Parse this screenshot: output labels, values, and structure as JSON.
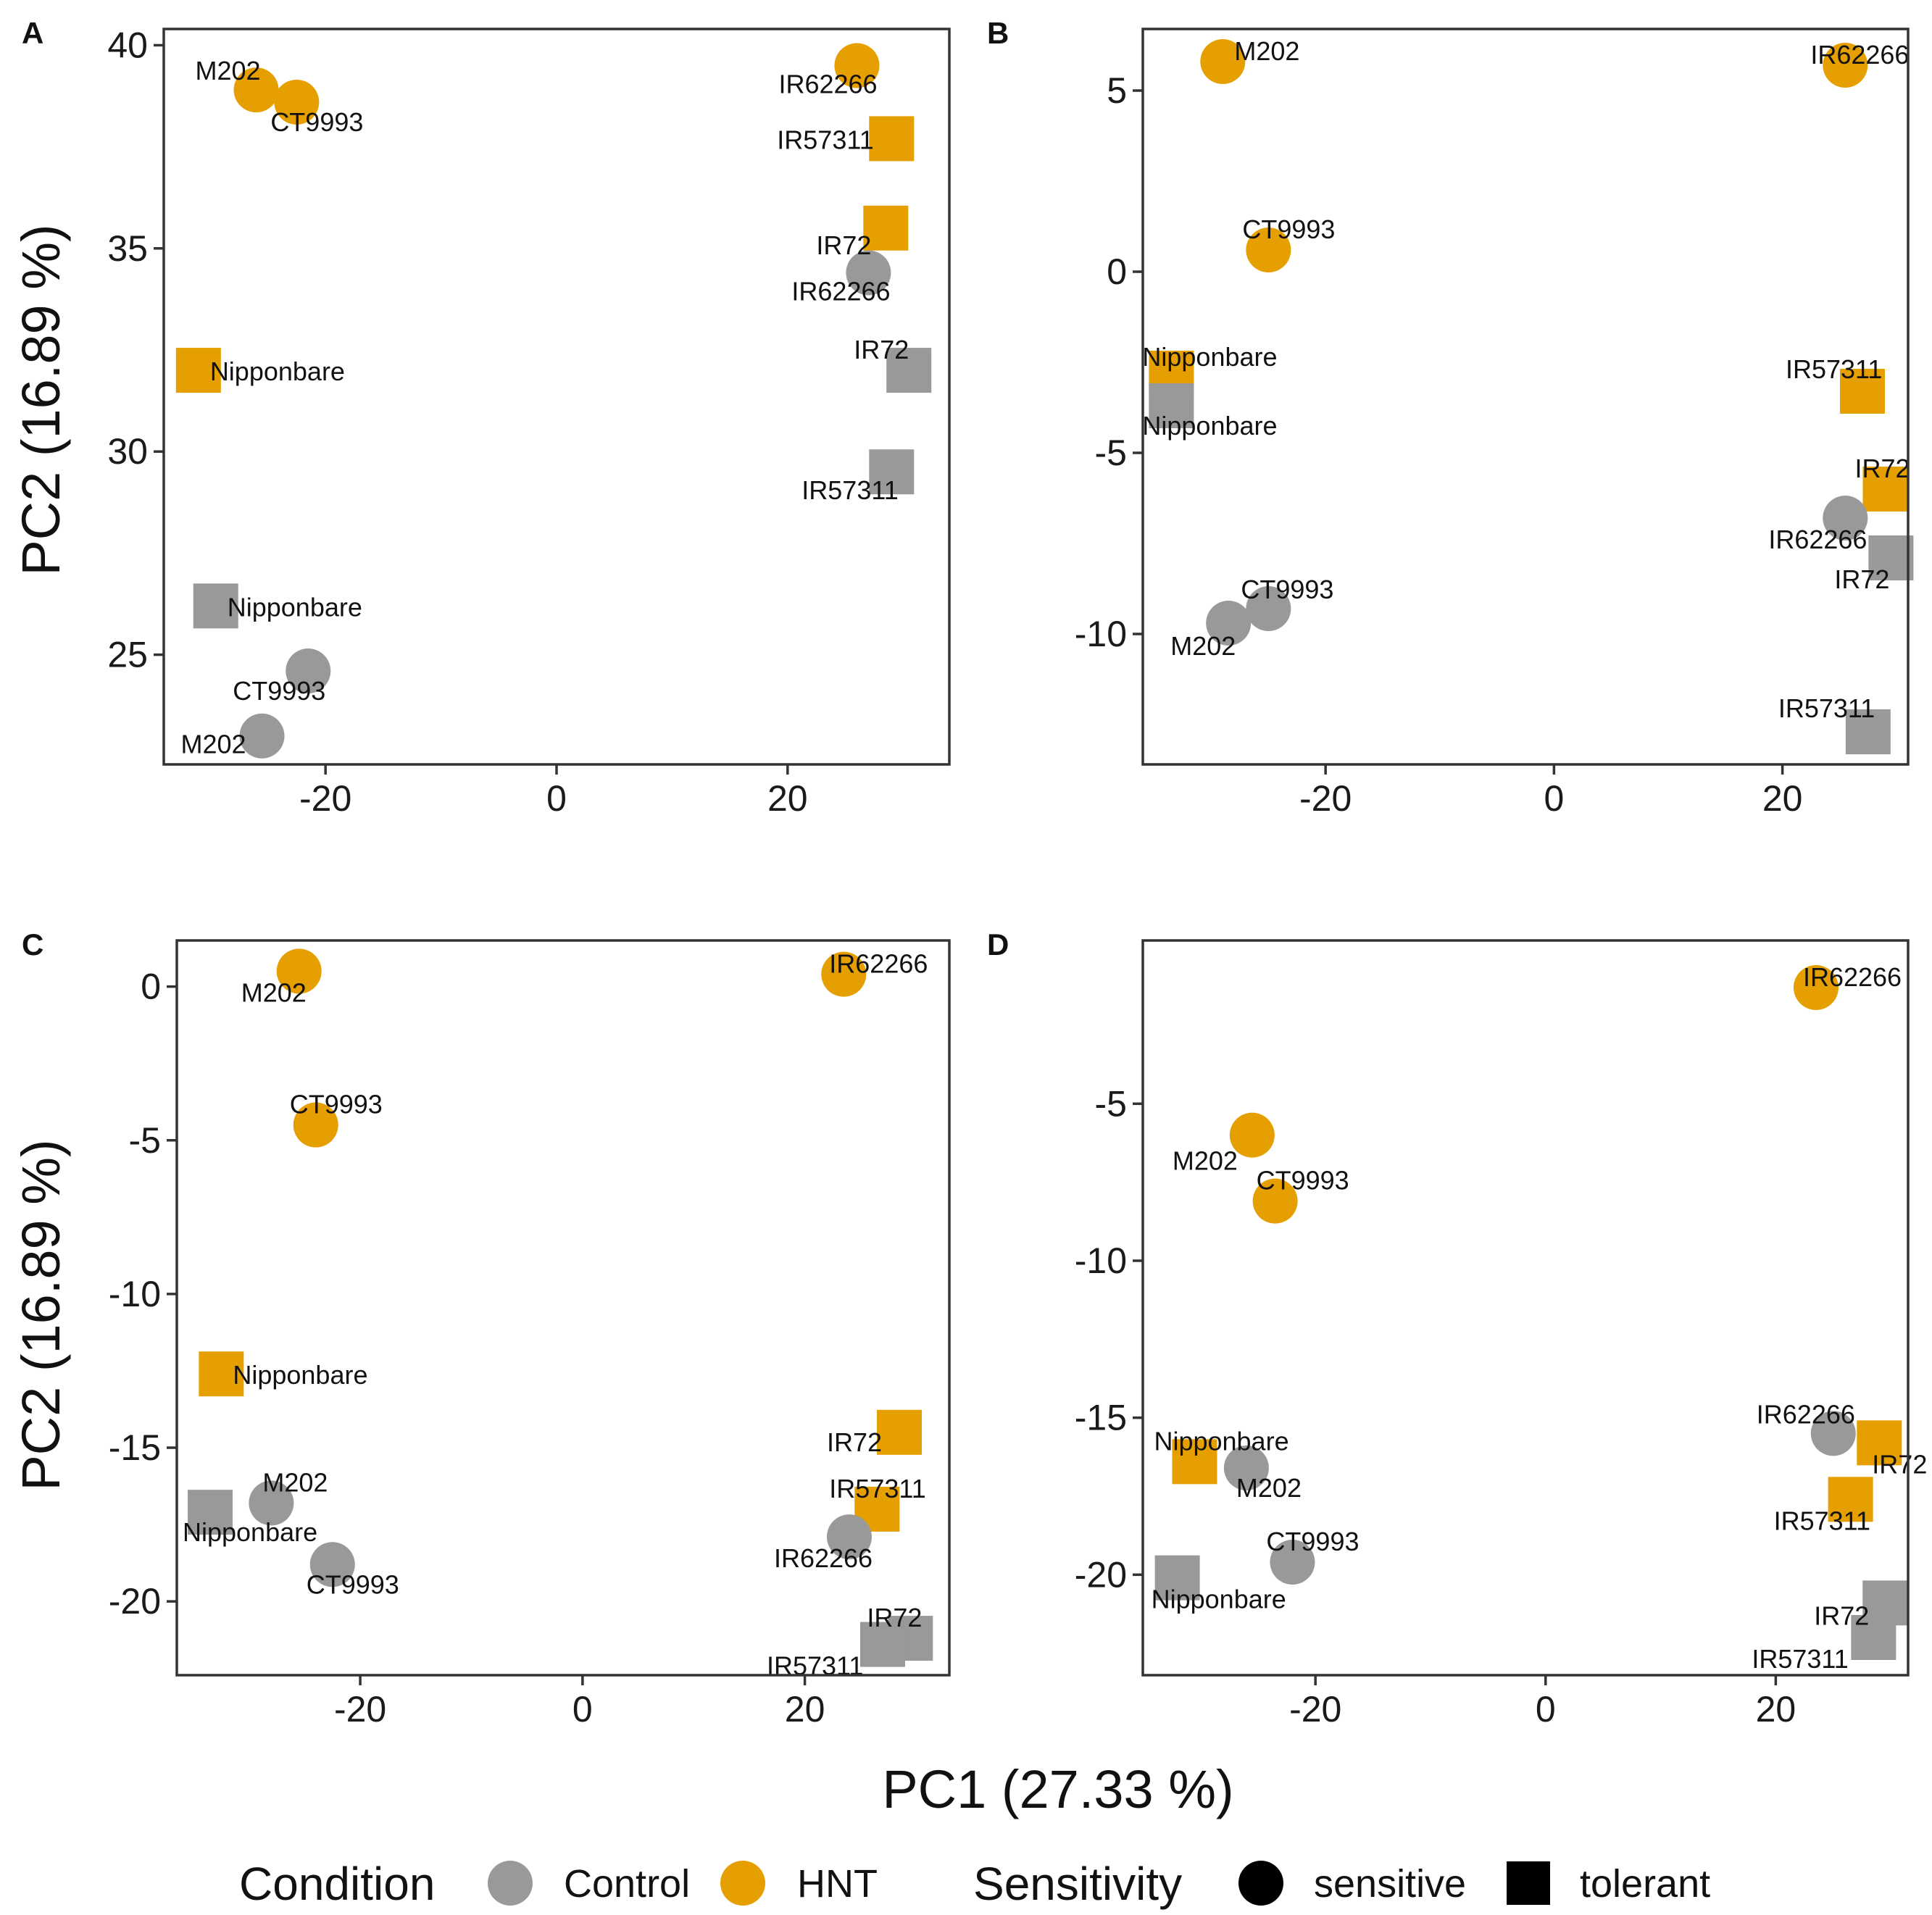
{
  "colors": {
    "Control": "#999999",
    "HNT": "#E69F00",
    "key_black": "#000000"
  },
  "chart_data": [
    {
      "type": "scatter",
      "panel": "A",
      "xlim": [
        -34,
        34
      ],
      "ylim": [
        22.3,
        40.4
      ],
      "xticks": [
        -20,
        0,
        20
      ],
      "yticks": [
        25,
        30,
        35,
        40
      ],
      "xtick_labels": [
        "-20",
        "0",
        "20"
      ],
      "ytick_labels": [
        "25",
        "30",
        "35",
        "40"
      ],
      "points": [
        {
          "label": "M202",
          "x": -26,
          "y": 38.9,
          "condition": "HNT",
          "sensitivity": "sensitive"
        },
        {
          "label": "CT9993",
          "x": -22.5,
          "y": 38.6,
          "condition": "HNT",
          "sensitivity": "sensitive"
        },
        {
          "label": "IR62266",
          "x": 26,
          "y": 39.5,
          "condition": "HNT",
          "sensitivity": "sensitive"
        },
        {
          "label": "IR57311",
          "x": 29,
          "y": 37.7,
          "condition": "HNT",
          "sensitivity": "tolerant"
        },
        {
          "label": "IR72",
          "x": 28.5,
          "y": 35.5,
          "condition": "HNT",
          "sensitivity": "tolerant"
        },
        {
          "label": "IR62266",
          "x": 27,
          "y": 34.4,
          "condition": "Control",
          "sensitivity": "sensitive"
        },
        {
          "label": "IR72",
          "x": 30.5,
          "y": 32.0,
          "condition": "Control",
          "sensitivity": "tolerant"
        },
        {
          "label": "IR57311",
          "x": 29,
          "y": 29.5,
          "condition": "Control",
          "sensitivity": "tolerant"
        },
        {
          "label": "Nipponbare",
          "x": -31,
          "y": 32.0,
          "condition": "HNT",
          "sensitivity": "tolerant"
        },
        {
          "label": "Nipponbare",
          "x": -29.5,
          "y": 26.2,
          "condition": "Control",
          "sensitivity": "tolerant"
        },
        {
          "label": "CT9993",
          "x": -21.5,
          "y": 24.6,
          "condition": "Control",
          "sensitivity": "sensitive"
        },
        {
          "label": "M202",
          "x": -25.5,
          "y": 23.0,
          "condition": "Control",
          "sensitivity": "sensitive"
        }
      ]
    },
    {
      "type": "scatter",
      "panel": "B",
      "xlim": [
        -36,
        31
      ],
      "ylim": [
        -13.6,
        6.7
      ],
      "xticks": [
        -20,
        0,
        20
      ],
      "yticks": [
        -10,
        -5,
        0,
        5
      ],
      "xtick_labels": [
        "-20",
        "0",
        "20"
      ],
      "ytick_labels": [
        "-10",
        "-5",
        "0",
        "5"
      ],
      "points": [
        {
          "label": "M202",
          "x": -29,
          "y": 5.8,
          "condition": "HNT",
          "sensitivity": "sensitive"
        },
        {
          "label": "IR62266",
          "x": 25.5,
          "y": 5.7,
          "condition": "HNT",
          "sensitivity": "sensitive"
        },
        {
          "label": "CT9993",
          "x": -25,
          "y": 0.6,
          "condition": "HNT",
          "sensitivity": "sensitive"
        },
        {
          "label": "Nipponbare",
          "x": -33.5,
          "y": -2.8,
          "condition": "HNT",
          "sensitivity": "tolerant"
        },
        {
          "label": "Nipponbare",
          "x": -33.5,
          "y": -3.7,
          "condition": "Control",
          "sensitivity": "tolerant"
        },
        {
          "label": "IR57311",
          "x": 27,
          "y": -3.3,
          "condition": "HNT",
          "sensitivity": "tolerant"
        },
        {
          "label": "IR72",
          "x": 29,
          "y": -6.0,
          "condition": "HNT",
          "sensitivity": "tolerant"
        },
        {
          "label": "IR62266",
          "x": 25.5,
          "y": -6.8,
          "condition": "Control",
          "sensitivity": "sensitive"
        },
        {
          "label": "IR72",
          "x": 29.5,
          "y": -7.9,
          "condition": "Control",
          "sensitivity": "tolerant"
        },
        {
          "label": "CT9993",
          "x": -25,
          "y": -9.3,
          "condition": "Control",
          "sensitivity": "sensitive"
        },
        {
          "label": "M202",
          "x": -28.5,
          "y": -9.7,
          "condition": "Control",
          "sensitivity": "sensitive"
        },
        {
          "label": "IR57311",
          "x": 27.5,
          "y": -12.7,
          "condition": "Control",
          "sensitivity": "tolerant"
        }
      ]
    },
    {
      "type": "scatter",
      "panel": "C",
      "xlim": [
        -36.5,
        33
      ],
      "ylim": [
        -22.4,
        1.5
      ],
      "xticks": [
        -20,
        0,
        20
      ],
      "yticks": [
        -20,
        -15,
        -10,
        -5,
        0
      ],
      "xtick_labels": [
        "-20",
        "0",
        "20"
      ],
      "ytick_labels": [
        "-20",
        "-15",
        "-10",
        "-5",
        "0"
      ],
      "points": [
        {
          "label": "M202",
          "x": -25.5,
          "y": 0.5,
          "condition": "HNT",
          "sensitivity": "sensitive"
        },
        {
          "label": "IR62266",
          "x": 23.5,
          "y": 0.4,
          "condition": "HNT",
          "sensitivity": "sensitive"
        },
        {
          "label": "CT9993",
          "x": -24,
          "y": -4.5,
          "condition": "HNT",
          "sensitivity": "sensitive"
        },
        {
          "label": "Nipponbare",
          "x": -32.5,
          "y": -12.6,
          "condition": "HNT",
          "sensitivity": "tolerant"
        },
        {
          "label": "IR72",
          "x": 28.5,
          "y": -14.5,
          "condition": "HNT",
          "sensitivity": "tolerant"
        },
        {
          "label": "IR57311",
          "x": 26.5,
          "y": -17.0,
          "condition": "HNT",
          "sensitivity": "tolerant"
        },
        {
          "label": "M202",
          "x": -28,
          "y": -16.8,
          "condition": "Control",
          "sensitivity": "sensitive"
        },
        {
          "label": "Nipponbare",
          "x": -33.5,
          "y": -17.1,
          "condition": "Control",
          "sensitivity": "tolerant"
        },
        {
          "label": "CT9993",
          "x": -22.5,
          "y": -18.8,
          "condition": "Control",
          "sensitivity": "sensitive"
        },
        {
          "label": "IR62266",
          "x": 24,
          "y": -17.9,
          "condition": "Control",
          "sensitivity": "sensitive"
        },
        {
          "label": "IR72",
          "x": 29.5,
          "y": -21.2,
          "condition": "Control",
          "sensitivity": "tolerant"
        },
        {
          "label": "IR57311",
          "x": 27,
          "y": -21.4,
          "condition": "Control",
          "sensitivity": "tolerant"
        }
      ]
    },
    {
      "type": "scatter",
      "panel": "D",
      "xlim": [
        -35,
        31.5
      ],
      "ylim": [
        -23.2,
        0.2
      ],
      "xticks": [
        -20,
        0,
        20
      ],
      "yticks": [
        -20,
        -15,
        -10,
        -5
      ],
      "xtick_labels": [
        "-20",
        "0",
        "20"
      ],
      "ytick_labels": [
        "-20",
        "-15",
        "-10",
        "-5"
      ],
      "points": [
        {
          "label": "IR62266",
          "x": 23.5,
          "y": -1.3,
          "condition": "HNT",
          "sensitivity": "sensitive"
        },
        {
          "label": "M202",
          "x": -25.5,
          "y": -6.0,
          "condition": "HNT",
          "sensitivity": "sensitive"
        },
        {
          "label": "CT9993",
          "x": -23.5,
          "y": -8.1,
          "condition": "HNT",
          "sensitivity": "sensitive"
        },
        {
          "label": "Nipponbare",
          "x": -30.5,
          "y": -16.4,
          "condition": "HNT",
          "sensitivity": "tolerant"
        },
        {
          "label": "IR62266",
          "x": 25,
          "y": -15.5,
          "condition": "Control",
          "sensitivity": "sensitive"
        },
        {
          "label": "IR72",
          "x": 29,
          "y": -15.8,
          "condition": "HNT",
          "sensitivity": "tolerant"
        },
        {
          "label": "IR57311",
          "x": 26.5,
          "y": -17.6,
          "condition": "HNT",
          "sensitivity": "tolerant"
        },
        {
          "label": "M202",
          "x": -26,
          "y": -16.6,
          "condition": "Control",
          "sensitivity": "sensitive"
        },
        {
          "label": "CT9993",
          "x": -22,
          "y": -19.6,
          "condition": "Control",
          "sensitivity": "sensitive"
        },
        {
          "label": "Nipponbare",
          "x": -32,
          "y": -20.1,
          "condition": "Control",
          "sensitivity": "tolerant"
        },
        {
          "label": "IR72",
          "x": 29.5,
          "y": -20.9,
          "condition": "Control",
          "sensitivity": "tolerant"
        },
        {
          "label": "IR57311",
          "x": 28.5,
          "y": -22.0,
          "condition": "Control",
          "sensitivity": "tolerant"
        }
      ]
    }
  ],
  "axes": {
    "ylabel": "PC2 (16.89 %)",
    "xlabel": "PC1 (27.33 %)"
  },
  "legend": {
    "condition_title": "Condition",
    "condition_items": [
      {
        "label": "Control",
        "color": "#999999"
      },
      {
        "label": "HNT",
        "color": "#E69F00"
      }
    ],
    "sensitivity_title": "Sensitivity",
    "sensitivity_items": [
      {
        "label": "sensitive",
        "shape": "circle"
      },
      {
        "label": "tolerant",
        "shape": "square"
      }
    ]
  }
}
